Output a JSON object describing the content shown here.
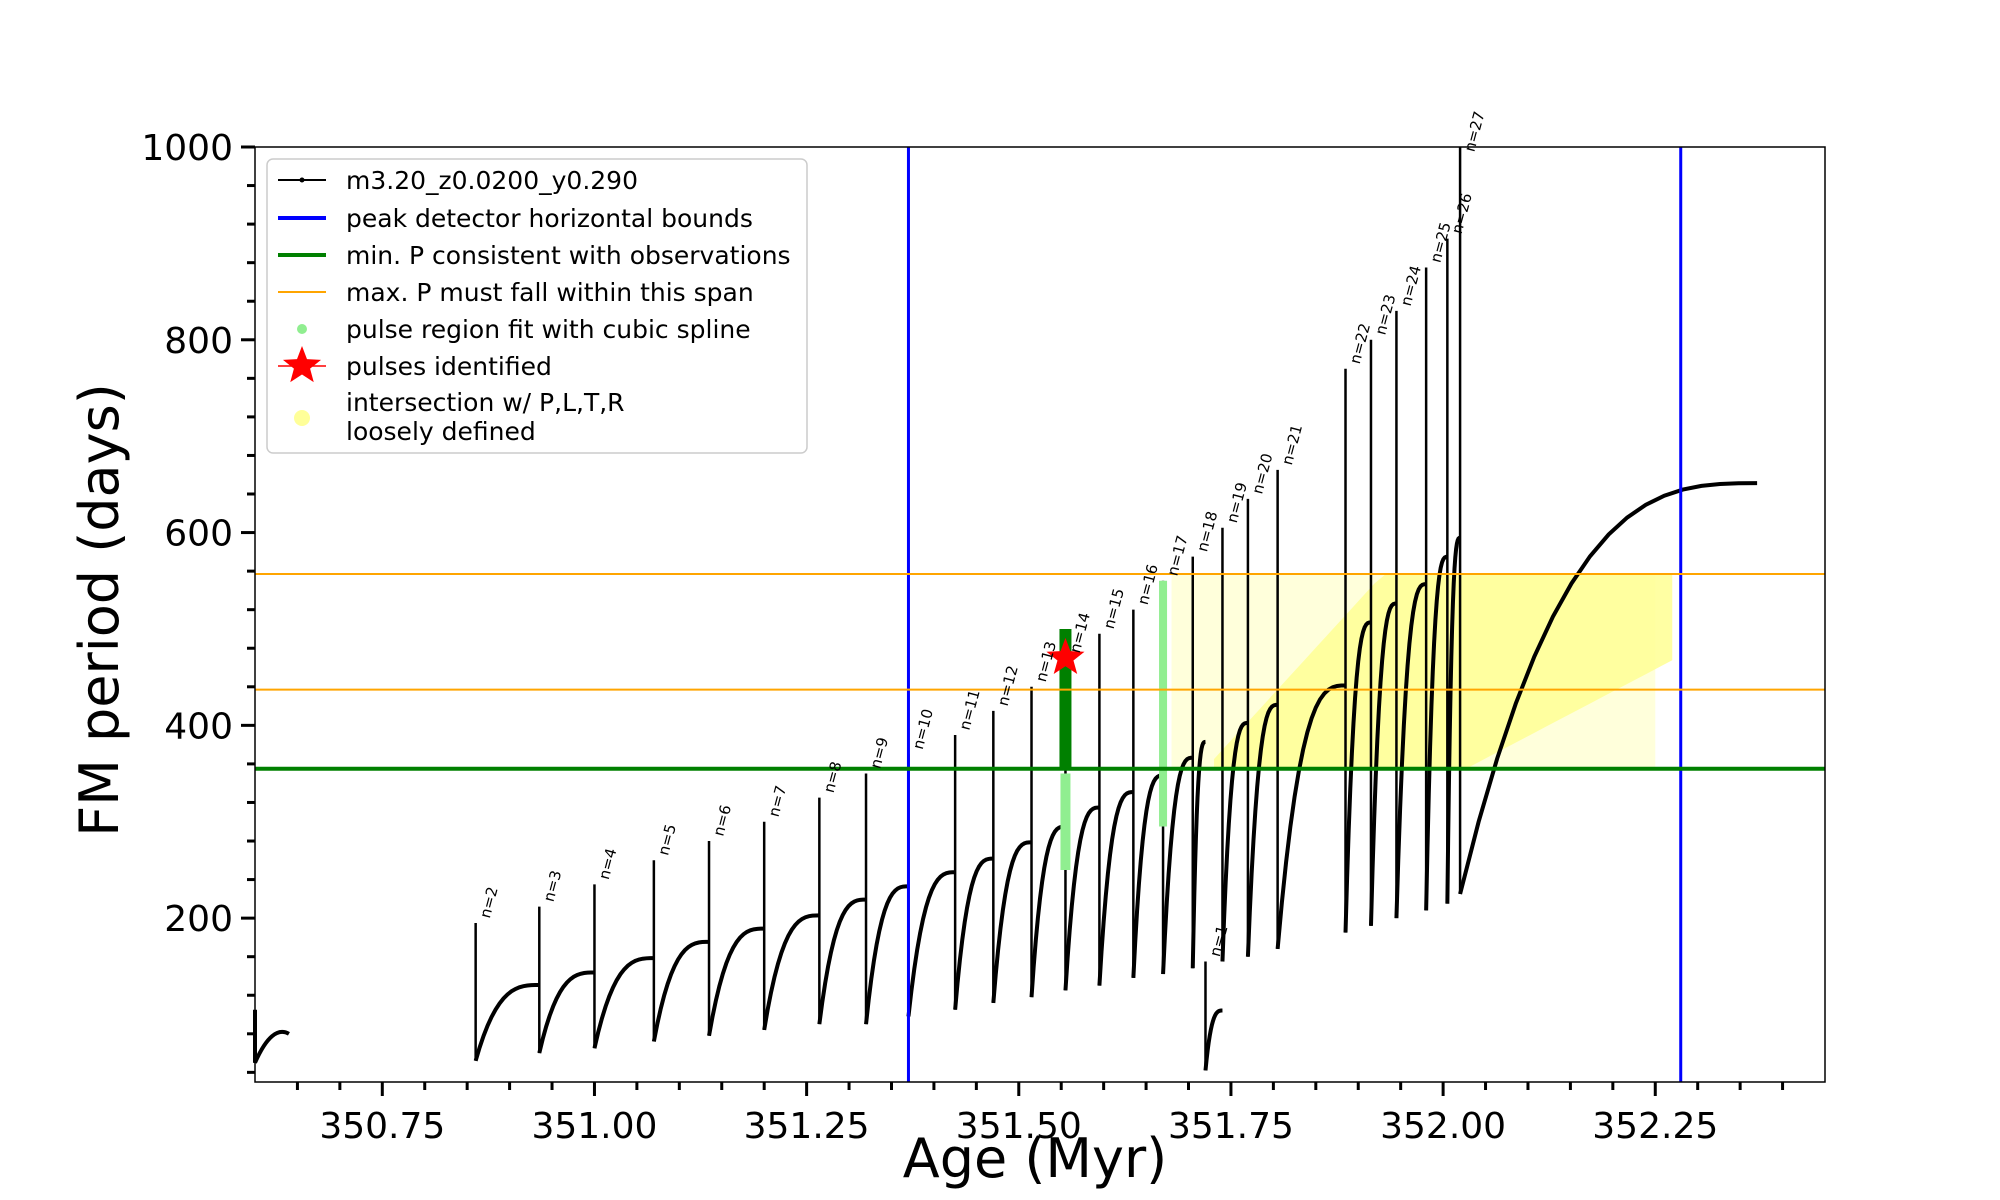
{
  "chart_data": {
    "type": "line",
    "xlabel": "Age (Myr)",
    "ylabel": "FM period (days)",
    "xlim": [
      350.6,
      352.45
    ],
    "ylim": [
      30,
      1000
    ],
    "x_ticks": [
      350.75,
      351.0,
      351.25,
      351.5,
      351.75,
      352.0,
      352.25
    ],
    "x_tick_labels": [
      "350.75",
      "351.00",
      "351.25",
      "351.50",
      "351.75",
      "352.00",
      "352.25"
    ],
    "y_ticks": [
      200,
      400,
      600,
      800,
      1000
    ],
    "y_tick_labels": [
      "200",
      "400",
      "600",
      "800",
      "1000"
    ],
    "legend": {
      "position": "upper-left",
      "entries": [
        {
          "label": "m3.20_z0.0200_y0.290",
          "color": "#000000",
          "kind": "line-marker"
        },
        {
          "label": "peak detector horizontal bounds",
          "color": "#0000ff",
          "kind": "line"
        },
        {
          "label": "min. P consistent with observations",
          "color": "#008000",
          "kind": "line"
        },
        {
          "label": "max. P must fall within this span",
          "color": "#ffa500",
          "kind": "line"
        },
        {
          "label": "pulse region fit with cubic spline",
          "color": "#90ee90",
          "kind": "dot"
        },
        {
          "label": "pulses identified",
          "color": "#ff0000",
          "kind": "star"
        },
        {
          "label": "intersection w/ P,L,T,R",
          "label2": "loosely defined",
          "color": "#ffff99",
          "kind": "dot"
        }
      ]
    },
    "reference_lines": {
      "peak_detector_bounds_x": [
        351.37,
        352.28
      ],
      "min_period_y": 355,
      "max_period_span_y": [
        437,
        557
      ]
    },
    "pulses": [
      {
        "label": "n=1",
        "age": 351.72,
        "peak": 155,
        "min": 42
      },
      {
        "label": "n=2",
        "age": 350.86,
        "peak": 195,
        "min": 52
      },
      {
        "label": "n=3",
        "age": 350.935,
        "peak": 212,
        "min": 60
      },
      {
        "label": "n=4",
        "age": 351.0,
        "peak": 235,
        "min": 65
      },
      {
        "label": "n=5",
        "age": 351.07,
        "peak": 260,
        "min": 72
      },
      {
        "label": "n=6",
        "age": 351.135,
        "peak": 280,
        "min": 78
      },
      {
        "label": "n=7",
        "age": 351.2,
        "peak": 300,
        "min": 84
      },
      {
        "label": "n=8",
        "age": 351.265,
        "peak": 325,
        "min": 90
      },
      {
        "label": "n=9",
        "age": 351.32,
        "peak": 350,
        "min": 90
      },
      {
        "label": "n=10",
        "age": 351.37,
        "peak": 370,
        "min": 98
      },
      {
        "label": "n=11",
        "age": 351.425,
        "peak": 390,
        "min": 105
      },
      {
        "label": "n=12",
        "age": 351.47,
        "peak": 415,
        "min": 112
      },
      {
        "label": "n=13",
        "age": 351.515,
        "peak": 440,
        "min": 118
      },
      {
        "label": "n=14",
        "age": 351.555,
        "peak": 470,
        "min": 125
      },
      {
        "label": "n=15",
        "age": 351.595,
        "peak": 495,
        "min": 130
      },
      {
        "label": "n=16",
        "age": 351.635,
        "peak": 520,
        "min": 138
      },
      {
        "label": "n=17",
        "age": 351.67,
        "peak": 550,
        "min": 142
      },
      {
        "label": "n=18",
        "age": 351.705,
        "peak": 575,
        "min": 148
      },
      {
        "label": "n=19",
        "age": 351.74,
        "peak": 605,
        "min": 155
      },
      {
        "label": "n=20",
        "age": 351.77,
        "peak": 635,
        "min": 160
      },
      {
        "label": "n=21",
        "age": 351.805,
        "peak": 665,
        "min": 168
      },
      {
        "label": "n=22",
        "age": 351.885,
        "peak": 770,
        "min": 185
      },
      {
        "label": "n=23",
        "age": 351.915,
        "peak": 800,
        "min": 192
      },
      {
        "label": "n=24",
        "age": 351.945,
        "peak": 830,
        "min": 200
      },
      {
        "label": "n=25",
        "age": 351.98,
        "peak": 875,
        "min": 208
      },
      {
        "label": "n=26",
        "age": 352.005,
        "peak": 905,
        "min": 215
      },
      {
        "label": "n=27",
        "age": 352.02,
        "peak": 1000,
        "min": 225
      }
    ],
    "highlighted_pulse": {
      "label": "n=14",
      "age": 351.555,
      "period": 470
    }
  }
}
